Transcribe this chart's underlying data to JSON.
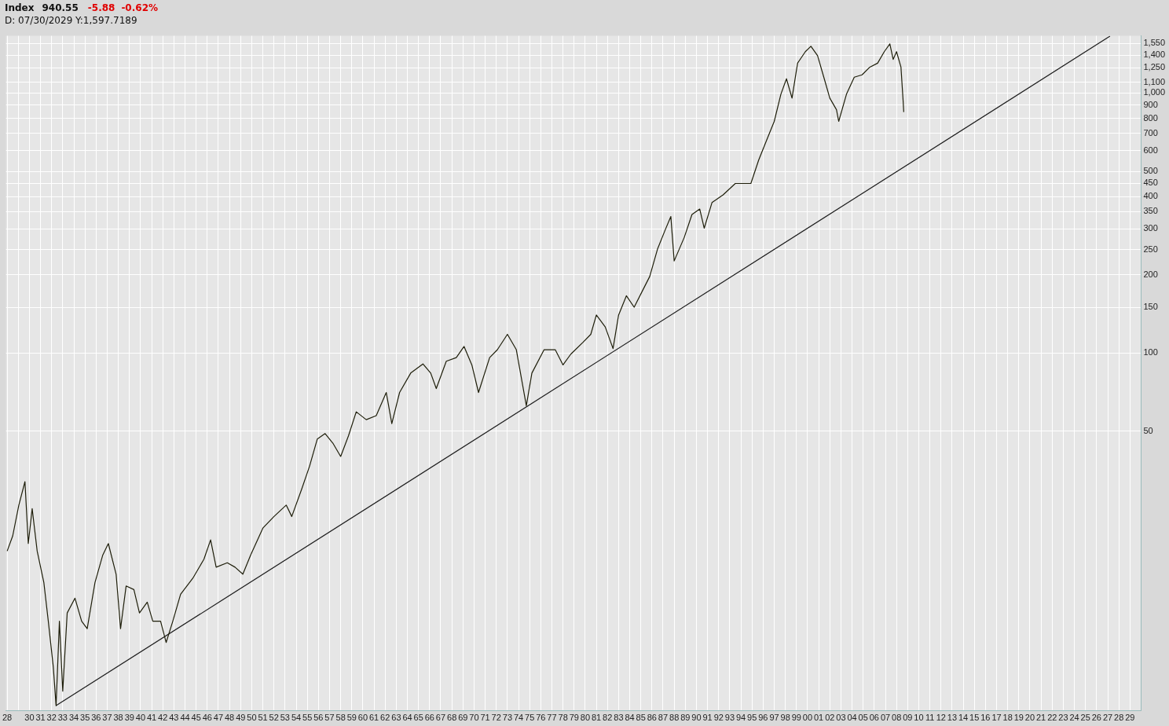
{
  "chart_data": {
    "type": "line",
    "title": "Index",
    "annotations": [
      "940.55",
      "-5.88",
      "-0.62%",
      "D: 07/30/2029 Y:1,597.7189"
    ],
    "log": "y",
    "grid": true,
    "legend": false,
    "marker": "none",
    "line_style": "solid",
    "xlim": [
      1927.9,
      2030
    ],
    "ylim": [
      4.2,
      1660
    ],
    "xticks": [
      {
        "value": 1928,
        "label": "28"
      },
      {
        "value": 1929,
        "label": null
      },
      {
        "value": 1930,
        "label": "30"
      },
      {
        "value": 1931,
        "label": "31"
      },
      {
        "value": 1932,
        "label": "32"
      },
      {
        "value": 1933,
        "label": "33"
      },
      {
        "value": 1934,
        "label": "34"
      },
      {
        "value": 1935,
        "label": "35"
      },
      {
        "value": 1936,
        "label": "36"
      },
      {
        "value": 1937,
        "label": "37"
      },
      {
        "value": 1938,
        "label": "38"
      },
      {
        "value": 1939,
        "label": "39"
      },
      {
        "value": 1940,
        "label": "40"
      },
      {
        "value": 1941,
        "label": "41"
      },
      {
        "value": 1942,
        "label": "42"
      },
      {
        "value": 1943,
        "label": "43"
      },
      {
        "value": 1944,
        "label": "44"
      },
      {
        "value": 1945,
        "label": "45"
      },
      {
        "value": 1946,
        "label": "46"
      },
      {
        "value": 1947,
        "label": "47"
      },
      {
        "value": 1948,
        "label": "48"
      },
      {
        "value": 1949,
        "label": "49"
      },
      {
        "value": 1950,
        "label": "50"
      },
      {
        "value": 1951,
        "label": "51"
      },
      {
        "value": 1952,
        "label": "52"
      },
      {
        "value": 1953,
        "label": "53"
      },
      {
        "value": 1954,
        "label": "54"
      },
      {
        "value": 1955,
        "label": "55"
      },
      {
        "value": 1956,
        "label": "56"
      },
      {
        "value": 1957,
        "label": "57"
      },
      {
        "value": 1958,
        "label": "58"
      },
      {
        "value": 1959,
        "label": "59"
      },
      {
        "value": 1960,
        "label": "60"
      },
      {
        "value": 1961,
        "label": "61"
      },
      {
        "value": 1962,
        "label": "62"
      },
      {
        "value": 1963,
        "label": "63"
      },
      {
        "value": 1964,
        "label": "64"
      },
      {
        "value": 1965,
        "label": "65"
      },
      {
        "value": 1966,
        "label": "66"
      },
      {
        "value": 1967,
        "label": "67"
      },
      {
        "value": 1968,
        "label": "68"
      },
      {
        "value": 1969,
        "label": "69"
      },
      {
        "value": 1970,
        "label": "70"
      },
      {
        "value": 1971,
        "label": "71"
      },
      {
        "value": 1972,
        "label": "72"
      },
      {
        "value": 1973,
        "label": "73"
      },
      {
        "value": 1974,
        "label": "74"
      },
      {
        "value": 1975,
        "label": "75"
      },
      {
        "value": 1976,
        "label": "76"
      },
      {
        "value": 1977,
        "label": "77"
      },
      {
        "value": 1978,
        "label": "78"
      },
      {
        "value": 1979,
        "label": "79"
      },
      {
        "value": 1980,
        "label": "80"
      },
      {
        "value": 1981,
        "label": "81"
      },
      {
        "value": 1982,
        "label": "82"
      },
      {
        "value": 1983,
        "label": "83"
      },
      {
        "value": 1984,
        "label": "84"
      },
      {
        "value": 1985,
        "label": "85"
      },
      {
        "value": 1986,
        "label": "86"
      },
      {
        "value": 1987,
        "label": "87"
      },
      {
        "value": 1988,
        "label": "88"
      },
      {
        "value": 1989,
        "label": "89"
      },
      {
        "value": 1990,
        "label": "90"
      },
      {
        "value": 1991,
        "label": "91"
      },
      {
        "value": 1992,
        "label": "92"
      },
      {
        "value": 1993,
        "label": "93"
      },
      {
        "value": 1994,
        "label": "94"
      },
      {
        "value": 1995,
        "label": "95"
      },
      {
        "value": 1996,
        "label": "96"
      },
      {
        "value": 1997,
        "label": "97"
      },
      {
        "value": 1998,
        "label": "98"
      },
      {
        "value": 1999,
        "label": "99"
      },
      {
        "value": 2000,
        "label": "00"
      },
      {
        "value": 2001,
        "label": "01"
      },
      {
        "value": 2002,
        "label": "02"
      },
      {
        "value": 2003,
        "label": "03"
      },
      {
        "value": 2004,
        "label": "04"
      },
      {
        "value": 2005,
        "label": "05"
      },
      {
        "value": 2006,
        "label": "06"
      },
      {
        "value": 2007,
        "label": "07"
      },
      {
        "value": 2008,
        "label": "08"
      },
      {
        "value": 2009,
        "label": "09"
      },
      {
        "value": 2010,
        "label": "10"
      },
      {
        "value": 2011,
        "label": "11"
      },
      {
        "value": 2012,
        "label": "12"
      },
      {
        "value": 2013,
        "label": "13"
      },
      {
        "value": 2014,
        "label": "14"
      },
      {
        "value": 2015,
        "label": "15"
      },
      {
        "value": 2016,
        "label": "16"
      },
      {
        "value": 2017,
        "label": "17"
      },
      {
        "value": 2018,
        "label": "18"
      },
      {
        "value": 2019,
        "label": "19"
      },
      {
        "value": 2020,
        "label": "20"
      },
      {
        "value": 2021,
        "label": "21"
      },
      {
        "value": 2022,
        "label": "22"
      },
      {
        "value": 2023,
        "label": "23"
      },
      {
        "value": 2024,
        "label": "24"
      },
      {
        "value": 2025,
        "label": "25"
      },
      {
        "value": 2026,
        "label": "26"
      },
      {
        "value": 2027,
        "label": "27"
      },
      {
        "value": 2028,
        "label": "28"
      },
      {
        "value": 2029,
        "label": "29"
      }
    ],
    "yticks": [
      50,
      100,
      150,
      200,
      250,
      300,
      350,
      400,
      450,
      500,
      600,
      700,
      800,
      900,
      {
        "value": 1000,
        "label": "1,000"
      },
      {
        "value": 1100,
        "label": "1,100"
      },
      {
        "value": 1250,
        "label": "1,250"
      },
      {
        "value": 1400,
        "label": "1,400"
      },
      {
        "value": 1550,
        "label": "1,550"
      }
    ],
    "series": [
      {
        "color": "#1e1e0a",
        "x": [
          1928.0,
          1928.5,
          1929.05,
          1929.6,
          1929.9,
          1930.25,
          1930.7,
          1931.3,
          1931.7,
          1932.15,
          1932.4,
          1932.7,
          1933.0,
          1933.4,
          1934.1,
          1934.7,
          1935.2,
          1935.9,
          1936.6,
          1937.1,
          1937.8,
          1938.2,
          1938.7,
          1939.4,
          1939.9,
          1940.6,
          1941.1,
          1941.8,
          1942.3,
          1942.9,
          1943.6,
          1944.7,
          1945.7,
          1946.3,
          1946.8,
          1947.8,
          1948.5,
          1949.2,
          1949.9,
          1951.0,
          1952.0,
          1953.1,
          1953.6,
          1954.5,
          1955.2,
          1955.9,
          1956.6,
          1957.3,
          1958.0,
          1958.7,
          1959.4,
          1960.3,
          1961.2,
          1962.1,
          1962.6,
          1963.3,
          1964.3,
          1965.4,
          1966.1,
          1966.6,
          1967.5,
          1968.4,
          1969.1,
          1969.8,
          1970.4,
          1971.4,
          1972.1,
          1973.0,
          1973.8,
          1974.7,
          1975.2,
          1976.3,
          1977.3,
          1978.0,
          1978.7,
          1979.8,
          1980.5,
          1981.0,
          1981.8,
          1982.5,
          1983.0,
          1983.7,
          1984.4,
          1985.1,
          1985.8,
          1986.5,
          1987.2,
          1987.7,
          1988.0,
          1988.9,
          1989.6,
          1990.3,
          1990.7,
          1991.4,
          1992.4,
          1993.5,
          1994.4,
          1994.9,
          1995.6,
          1996.3,
          1997.0,
          1997.6,
          1998.1,
          1998.6,
          1999.1,
          1999.8,
          2000.3,
          2000.9,
          2001.5,
          2002.0,
          2002.6,
          2002.8,
          2003.5,
          2004.2,
          2004.9,
          2005.6,
          2006.3,
          2006.9,
          2007.4,
          2007.7,
          2008.0,
          2008.4,
          2008.6,
          2008.65
        ],
        "values": [
          17.3,
          19.8,
          26,
          32,
          18.5,
          25.2,
          17.3,
          13.1,
          9.3,
          6.2,
          4.4,
          9.3,
          5,
          10,
          11.4,
          9.3,
          8.7,
          13.1,
          16.7,
          18.5,
          14.1,
          8.7,
          12.7,
          12.3,
          10,
          11,
          9.3,
          9.3,
          7.7,
          9.3,
          11.8,
          13.6,
          16.1,
          19.1,
          15,
          15.6,
          15,
          14.1,
          16.7,
          21.2,
          23.5,
          26,
          23.5,
          30,
          36.7,
          46.7,
          49,
          45,
          40,
          48,
          59.4,
          55.4,
          57.4,
          70.5,
          53.5,
          70.5,
          83.7,
          90.8,
          83.7,
          73,
          93,
          96,
          106,
          90,
          70.5,
          96,
          103,
          118,
          103,
          62.7,
          83.7,
          103,
          103,
          90,
          99,
          110,
          118,
          140,
          126,
          104,
          140,
          166,
          150,
          172,
          197,
          251,
          298,
          335,
          226,
          278,
          341,
          358,
          302,
          379,
          406,
          449,
          449,
          449,
          552,
          656,
          778,
          990,
          1135,
          956,
          1303,
          1443,
          1514,
          1393,
          1135,
          956,
          863,
          778,
          990,
          1151,
          1175,
          1258,
          1303,
          1443,
          1546,
          1347,
          1443,
          1258,
          924,
          845
        ]
      },
      {
        "type": "line",
        "color": "#1a1a1a",
        "x": [
          1932.4,
          2027.2
        ],
        "values": [
          4.4,
          1656
        ]
      }
    ]
  }
}
